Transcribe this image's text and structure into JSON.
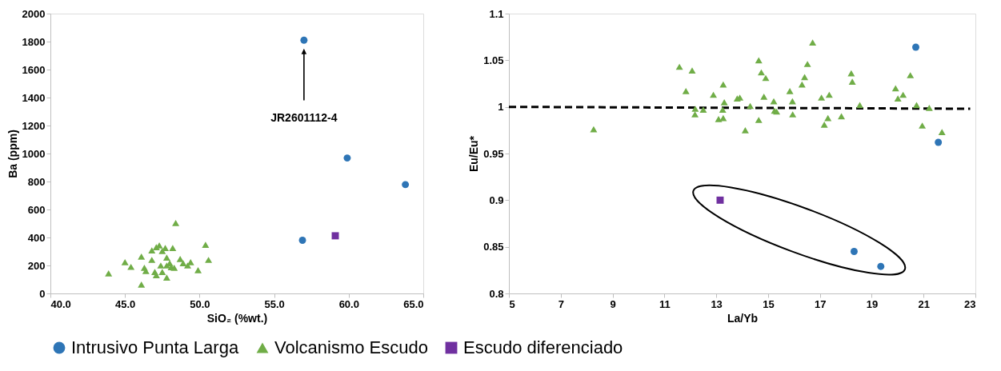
{
  "chart_data": [
    {
      "type": "scatter",
      "xlabel": "SiO₂ (%wt.)",
      "ylabel": "Ba (ppm)",
      "xlim": [
        40,
        65
      ],
      "ylim": [
        0,
        2000
      ],
      "xticks": [
        {
          "value": 40,
          "label": "40.0"
        },
        {
          "value": 45,
          "label": "45.0"
        },
        {
          "value": 50,
          "label": "50.0"
        },
        {
          "value": 55,
          "label": "55.0"
        },
        {
          "value": 60,
          "label": "60.0"
        },
        {
          "value": 65,
          "label": "65.0"
        }
      ],
      "yticks": [
        0,
        200,
        400,
        600,
        800,
        1000,
        1200,
        1400,
        1600,
        1800,
        2000
      ],
      "grid": false,
      "legend": "bottom",
      "annotations": [
        "JR2601112-4"
      ],
      "series": [
        {
          "name": "Intrusivo Punta Larga",
          "color": "#2e75b6",
          "marker": "circle",
          "x": [
            57.0,
            59.9,
            63.8,
            56.9
          ],
          "values": [
            1810,
            968,
            778,
            380
          ]
        },
        {
          "name": "Volcanismo Escudo",
          "color": "#70ad47",
          "marker": "triangle",
          "x": [
            43.9,
            45.0,
            45.4,
            46.1,
            46.1,
            46.3,
            46.4,
            46.8,
            46.8,
            47.0,
            47.1,
            47.1,
            47.3,
            47.4,
            47.5,
            47.5,
            47.7,
            47.8,
            47.8,
            47.8,
            48.0,
            48.1,
            48.2,
            48.3,
            48.4,
            48.7,
            48.9,
            49.2,
            49.4,
            49.9,
            50.4,
            50.6
          ],
          "values": [
            143,
            223,
            190,
            263,
            63,
            183,
            160,
            240,
            308,
            154,
            131,
            331,
            343,
            200,
            303,
            154,
            325,
            114,
            257,
            200,
            217,
            188,
            325,
            183,
            503,
            246,
            217,
            200,
            223,
            166,
            348,
            240
          ]
        },
        {
          "name": "Escudo diferenciado",
          "color": "#7030a0",
          "marker": "square",
          "x": [
            59.1
          ],
          "values": [
            412
          ]
        }
      ]
    },
    {
      "type": "scatter",
      "xlabel": "La/Yb",
      "ylabel": "Eu/Eu*",
      "xlim": [
        5,
        23
      ],
      "ylim": [
        0.8,
        1.1
      ],
      "xticks": [
        5,
        7,
        9,
        11,
        13,
        15,
        17,
        19,
        21,
        23
      ],
      "yticks": [
        0.8,
        0.85,
        0.9,
        0.95,
        1,
        1.05,
        1.1
      ],
      "grid": false,
      "legend": "bottom",
      "series": [
        {
          "type": "line",
          "color": "#000000",
          "line_style": "dashed",
          "marker": "none",
          "x": [
            5,
            22.8
          ],
          "values": [
            1.0,
            0.998
          ]
        },
        {
          "name": "Intrusivo Punta Larga",
          "color": "#2e75b6",
          "marker": "circle",
          "x": [
            20.7,
            21.57,
            18.32,
            19.35
          ],
          "values": [
            1.064,
            0.962,
            0.845,
            0.829
          ]
        },
        {
          "name": "Volcanismo Escudo",
          "color": "#70ad47",
          "marker": "triangle",
          "x": [
            8.27,
            11.58,
            12.07,
            11.83,
            12.19,
            12.18,
            12.5,
            12.89,
            13.27,
            13.31,
            13.25,
            13.09,
            13.27,
            13.81,
            13.91,
            14.12,
            14.31,
            14.64,
            14.74,
            14.91,
            14.64,
            14.84,
            15.22,
            15.25,
            15.33,
            15.84,
            15.94,
            15.95,
            16.31,
            16.41,
            16.52,
            16.72,
            17.06,
            17.36,
            17.31,
            17.17,
            17.83,
            18.21,
            18.25,
            18.54,
            19.92,
            20.01,
            20.21,
            20.49,
            20.73,
            21.22,
            20.95,
            21.71
          ],
          "values": [
            0.976,
            1.043,
            1.039,
            1.017,
            0.998,
            0.992,
            0.997,
            1.013,
            1.024,
            1.005,
            0.997,
            0.987,
            0.988,
            1.009,
            1.01,
            0.975,
            1.001,
            1.05,
            1.037,
            1.031,
            0.986,
            1.011,
            1.006,
            0.996,
            0.995,
            1.017,
            1.006,
            0.992,
            1.024,
            1.032,
            1.046,
            1.069,
            1.01,
            1.013,
            0.988,
            0.981,
            0.99,
            1.036,
            1.027,
            1.002,
            1.02,
            1.009,
            1.013,
            1.034,
            1.002,
            0.999,
            0.98,
            0.973
          ]
        },
        {
          "name": "Escudo diferenciado",
          "color": "#7030a0",
          "marker": "square",
          "x": [
            13.15
          ],
          "values": [
            0.9
          ]
        }
      ]
    }
  ]
}
